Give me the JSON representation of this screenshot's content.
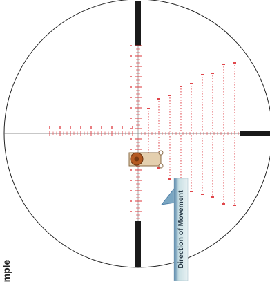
{
  "diagram": {
    "side_label": "mple",
    "direction_label": "Direction of Movement",
    "colors": {
      "scope_ring": "#222222",
      "post": "#1a1a1a",
      "reticle": "#e0464b",
      "target_fill": "#e4cfae",
      "target_stroke": "#8a6b46",
      "bullseye_outer": "#b45a22",
      "bullseye_inner": "#7a3a12",
      "arrow_fill": "#c9e0e4",
      "arrow_edge": "#4f7fa6",
      "arrow_text": "#2a3a48"
    },
    "icons": {
      "arrow": "direction-arrow-icon",
      "target": "moving-target-icon"
    }
  }
}
